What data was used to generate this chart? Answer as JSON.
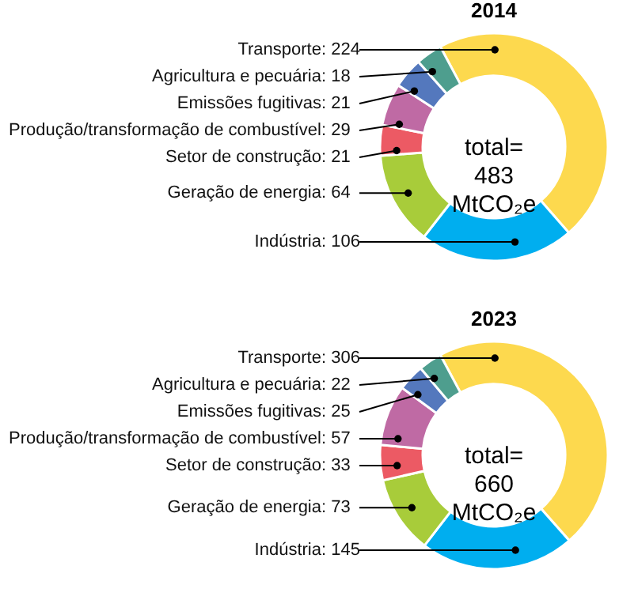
{
  "chart_data": [
    {
      "type": "donut",
      "title": "2014",
      "categories": [
        "Transporte",
        "Indústria",
        "Geração de energia",
        "Setor de construção",
        "Produção/transformação de combustível",
        "Emissões fugitivas",
        "Agricultura e pecuária"
      ],
      "values": [
        224,
        106,
        64,
        21,
        29,
        21,
        18
      ],
      "value_labels": [
        ": 224",
        ": 106",
        ": 64",
        ": 21",
        ": 29",
        ": 21",
        ": 18"
      ],
      "colors": [
        "#fdd94e",
        "#00aeef",
        "#a8cc3a",
        "#ec5a64",
        "#bf6aa4",
        "#5478bd",
        "#4e9e8e"
      ],
      "legend": false,
      "annotations": [
        "total=\n483\nMtCO₂e"
      ]
    },
    {
      "type": "donut",
      "title": "2023",
      "categories": [
        "Transporte",
        "Indústria",
        "Geração de energia",
        "Setor de construção",
        "Produção/transformação de combustível",
        "Emissões fugitivas",
        "Agricultura e pecuária"
      ],
      "values": [
        306,
        145,
        73,
        33,
        57,
        25,
        22
      ],
      "value_labels": [
        ": 306",
        ": 145",
        ": 73",
        ": 33",
        ": 57",
        ": 25",
        ": 22"
      ],
      "colors": [
        "#fdd94e",
        "#00aeef",
        "#a8cc3a",
        "#ec5a64",
        "#bf6aa4",
        "#5478bd",
        "#4e9e8e"
      ],
      "legend": false,
      "annotations": [
        "total=\n660\nMtCO₂e"
      ]
    }
  ]
}
